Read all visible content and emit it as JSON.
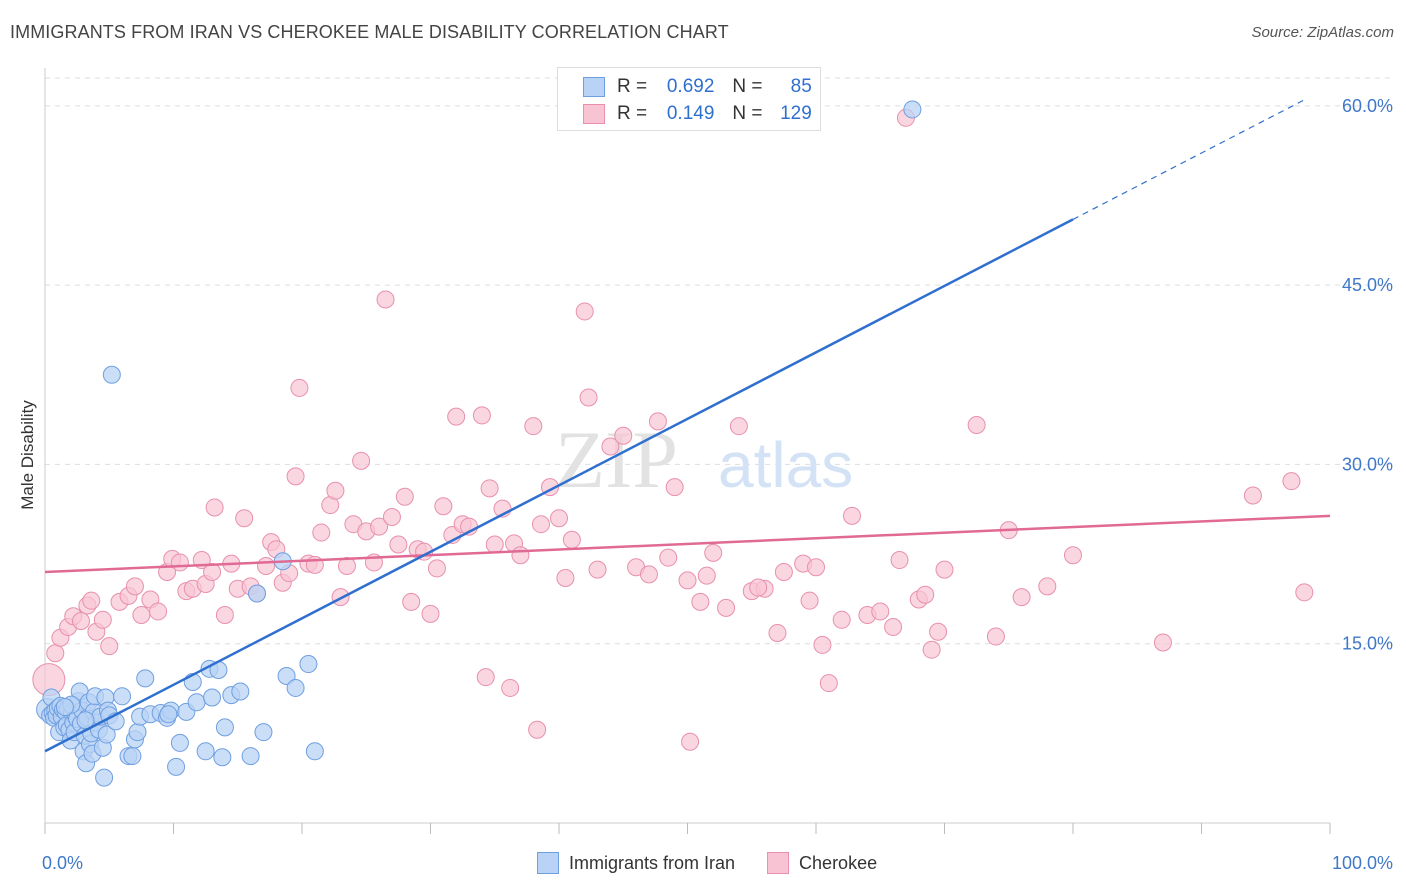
{
  "header": {
    "title": "IMMIGRANTS FROM IRAN VS CHEROKEE MALE DISABILITY CORRELATION CHART",
    "source": "Source: ZipAtlas.com"
  },
  "legend_top": {
    "rows": [
      {
        "r_label": "R =",
        "r_value": "0.692",
        "n_label": "N =",
        "n_value": "85"
      },
      {
        "r_label": "R =",
        "r_value": "0.149",
        "n_label": "N =",
        "n_value": "129"
      }
    ]
  },
  "legend_bottom": {
    "items": [
      "Immigrants from Iran",
      "Cherokee"
    ]
  },
  "watermark": {
    "zip": "ZIP",
    "atlas": "atlas"
  },
  "colors": {
    "iran_fill": "#b8d3f5",
    "iran_stroke": "#6f9fe0",
    "iran_line": "#2f6fcf",
    "cherokee_fill": "#f8c4d4",
    "cherokee_stroke": "#e890ad",
    "cherokee_line": "#e06a93",
    "axis_label": "#3f78c9",
    "grid": "#dddddd"
  },
  "chart_data": {
    "type": "scatter",
    "title": "IMMIGRANTS FROM IRAN VS CHEROKEE MALE DISABILITY CORRELATION CHART",
    "xlabel": "",
    "ylabel": "Male Disability",
    "xlim": [
      0,
      100
    ],
    "ylim": [
      0,
      63
    ],
    "x_tick_labels": [
      "0.0%",
      "100.0%"
    ],
    "y_ticks": [
      15,
      30,
      45,
      60
    ],
    "y_tick_labels": [
      "15.0%",
      "30.0%",
      "45.0%",
      "60.0%"
    ],
    "series": [
      {
        "name": "Immigrants from Iran",
        "r": 0.692,
        "n": 85,
        "trend": {
          "x0": 0,
          "y0": 6.0,
          "x1": 80,
          "y1": 50.5,
          "dashed_to_x": 98,
          "dashed_to_y": 60.5
        },
        "points": [
          [
            0.2,
            9.5
          ],
          [
            0.4,
            9.0
          ],
          [
            0.5,
            10.5
          ],
          [
            0.6,
            9.2
          ],
          [
            0.7,
            8.8
          ],
          [
            0.8,
            9.4
          ],
          [
            0.9,
            9.0
          ],
          [
            1.0,
            9.6
          ],
          [
            1.1,
            7.6
          ],
          [
            1.2,
            9.8
          ],
          [
            1.3,
            8.9
          ],
          [
            1.4,
            9.5
          ],
          [
            1.5,
            8.0
          ],
          [
            1.6,
            9.3
          ],
          [
            1.7,
            8.2
          ],
          [
            1.8,
            9.6
          ],
          [
            1.9,
            7.8
          ],
          [
            2.0,
            6.9
          ],
          [
            2.1,
            9.2
          ],
          [
            2.2,
            8.4
          ],
          [
            2.3,
            7.6
          ],
          [
            2.4,
            9.0
          ],
          [
            2.5,
            8.7
          ],
          [
            2.6,
            10.2
          ],
          [
            2.7,
            11.0
          ],
          [
            2.8,
            8.3
          ],
          [
            2.9,
            9.4
          ],
          [
            3.0,
            6.0
          ],
          [
            3.1,
            7.3
          ],
          [
            3.2,
            5.0
          ],
          [
            3.3,
            8.8
          ],
          [
            3.4,
            10.1
          ],
          [
            3.5,
            6.6
          ],
          [
            3.6,
            7.5
          ],
          [
            3.7,
            5.8
          ],
          [
            3.8,
            9.3
          ],
          [
            3.9,
            10.6
          ],
          [
            4.0,
            8.4
          ],
          [
            4.2,
            7.8
          ],
          [
            4.3,
            8.9
          ],
          [
            4.5,
            6.3
          ],
          [
            4.6,
            3.8
          ],
          [
            4.7,
            10.5
          ],
          [
            4.8,
            7.4
          ],
          [
            4.9,
            9.4
          ],
          [
            5.0,
            9.0
          ],
          [
            5.2,
            37.5
          ],
          [
            5.5,
            8.5
          ],
          [
            6.0,
            10.6
          ],
          [
            6.5,
            5.6
          ],
          [
            6.8,
            5.6
          ],
          [
            7.0,
            7.0
          ],
          [
            7.2,
            7.6
          ],
          [
            7.4,
            8.9
          ],
          [
            7.8,
            12.1
          ],
          [
            8.2,
            9.1
          ],
          [
            9.0,
            9.2
          ],
          [
            9.5,
            8.8
          ],
          [
            9.8,
            9.4
          ],
          [
            10.2,
            4.7
          ],
          [
            10.5,
            6.7
          ],
          [
            11.0,
            9.3
          ],
          [
            11.5,
            11.8
          ],
          [
            11.8,
            10.1
          ],
          [
            12.5,
            6.0
          ],
          [
            12.8,
            12.9
          ],
          [
            13.0,
            10.5
          ],
          [
            13.5,
            12.8
          ],
          [
            13.8,
            5.5
          ],
          [
            14.0,
            8.0
          ],
          [
            14.5,
            10.7
          ],
          [
            15.2,
            11.0
          ],
          [
            16.0,
            5.6
          ],
          [
            16.5,
            19.2
          ],
          [
            17.0,
            7.6
          ],
          [
            18.5,
            21.9
          ],
          [
            18.8,
            12.3
          ],
          [
            19.5,
            11.3
          ],
          [
            20.5,
            13.3
          ],
          [
            21.0,
            6.0
          ],
          [
            67.5,
            59.7
          ],
          [
            9.6,
            9.1
          ],
          [
            2.05,
            9.9
          ],
          [
            3.15,
            8.6
          ],
          [
            1.55,
            9.7
          ]
        ]
      },
      {
        "name": "Cherokee",
        "r": 0.149,
        "n": 129,
        "trend": {
          "x0": 0,
          "y0": 21.0,
          "x1": 100,
          "y1": 25.7
        },
        "points": [
          [
            0.3,
            12.0
          ],
          [
            0.8,
            14.2
          ],
          [
            1.2,
            15.5
          ],
          [
            1.8,
            16.4
          ],
          [
            2.2,
            17.3
          ],
          [
            2.8,
            16.9
          ],
          [
            3.3,
            18.2
          ],
          [
            3.6,
            18.6
          ],
          [
            4.0,
            16.0
          ],
          [
            4.5,
            17.0
          ],
          [
            5.0,
            14.8
          ],
          [
            5.8,
            18.5
          ],
          [
            6.5,
            19.0
          ],
          [
            7.0,
            19.8
          ],
          [
            7.5,
            17.4
          ],
          [
            8.2,
            18.7
          ],
          [
            8.8,
            17.7
          ],
          [
            9.5,
            21.0
          ],
          [
            9.9,
            22.1
          ],
          [
            10.5,
            21.8
          ],
          [
            11.0,
            19.4
          ],
          [
            11.5,
            19.6
          ],
          [
            12.2,
            22.0
          ],
          [
            12.5,
            20.0
          ],
          [
            13.0,
            21.0
          ],
          [
            13.2,
            26.4
          ],
          [
            14.0,
            17.4
          ],
          [
            14.5,
            21.7
          ],
          [
            15.0,
            19.6
          ],
          [
            15.5,
            25.5
          ],
          [
            16.0,
            19.8
          ],
          [
            16.5,
            19.2
          ],
          [
            17.2,
            21.5
          ],
          [
            17.6,
            23.5
          ],
          [
            18.0,
            22.9
          ],
          [
            18.5,
            20.1
          ],
          [
            19.0,
            20.9
          ],
          [
            19.5,
            29.0
          ],
          [
            19.8,
            36.4
          ],
          [
            20.5,
            21.7
          ],
          [
            21.0,
            21.6
          ],
          [
            21.5,
            24.3
          ],
          [
            22.2,
            26.6
          ],
          [
            22.6,
            27.8
          ],
          [
            23.0,
            18.9
          ],
          [
            23.5,
            21.5
          ],
          [
            24.0,
            25.0
          ],
          [
            24.6,
            30.3
          ],
          [
            25.0,
            24.4
          ],
          [
            25.6,
            21.8
          ],
          [
            26.0,
            24.8
          ],
          [
            26.5,
            43.8
          ],
          [
            27.0,
            25.6
          ],
          [
            27.5,
            23.3
          ],
          [
            28.0,
            27.3
          ],
          [
            28.5,
            18.5
          ],
          [
            29.0,
            22.9
          ],
          [
            29.5,
            22.7
          ],
          [
            30.0,
            17.5
          ],
          [
            30.5,
            21.3
          ],
          [
            31.0,
            26.5
          ],
          [
            31.7,
            24.1
          ],
          [
            32.0,
            34.0
          ],
          [
            32.5,
            25.0
          ],
          [
            33.0,
            24.8
          ],
          [
            34.0,
            34.1
          ],
          [
            34.6,
            28.0
          ],
          [
            35.0,
            23.3
          ],
          [
            35.6,
            26.3
          ],
          [
            36.5,
            23.4
          ],
          [
            37.0,
            22.4
          ],
          [
            38.0,
            33.2
          ],
          [
            38.6,
            25.0
          ],
          [
            39.3,
            28.1
          ],
          [
            40.0,
            25.5
          ],
          [
            40.5,
            20.5
          ],
          [
            41.0,
            23.7
          ],
          [
            42.0,
            42.8
          ],
          [
            42.3,
            35.6
          ],
          [
            44.0,
            31.5
          ],
          [
            45.0,
            32.4
          ],
          [
            46.0,
            21.4
          ],
          [
            47.0,
            20.8
          ],
          [
            47.7,
            33.6
          ],
          [
            48.5,
            22.2
          ],
          [
            49.0,
            28.1
          ],
          [
            50.0,
            20.3
          ],
          [
            51.0,
            18.5
          ],
          [
            51.5,
            20.7
          ],
          [
            52.0,
            22.6
          ],
          [
            53.0,
            18.0
          ],
          [
            54.0,
            33.2
          ],
          [
            55.0,
            19.4
          ],
          [
            56.0,
            19.6
          ],
          [
            57.0,
            15.9
          ],
          [
            57.5,
            21.0
          ],
          [
            59.0,
            21.7
          ],
          [
            59.5,
            18.6
          ],
          [
            60.0,
            21.4
          ],
          [
            60.5,
            14.9
          ],
          [
            61.0,
            11.7
          ],
          [
            62.0,
            17.0
          ],
          [
            62.8,
            25.7
          ],
          [
            64.0,
            17.4
          ],
          [
            65.0,
            17.7
          ],
          [
            66.0,
            16.4
          ],
          [
            66.5,
            22.0
          ],
          [
            67.0,
            59.0
          ],
          [
            68.0,
            18.7
          ],
          [
            68.5,
            19.1
          ],
          [
            69.0,
            14.5
          ],
          [
            69.5,
            16.0
          ],
          [
            70.0,
            21.2
          ],
          [
            72.5,
            33.3
          ],
          [
            74.0,
            15.6
          ],
          [
            75.0,
            24.5
          ],
          [
            76.0,
            18.9
          ],
          [
            78.0,
            19.8
          ],
          [
            80.0,
            22.4
          ],
          [
            87.0,
            15.1
          ],
          [
            94.0,
            27.4
          ],
          [
            97.0,
            28.6
          ],
          [
            98.0,
            19.3
          ],
          [
            34.3,
            12.2
          ],
          [
            36.2,
            11.3
          ],
          [
            38.3,
            7.8
          ],
          [
            50.2,
            6.8
          ],
          [
            43.0,
            21.2
          ],
          [
            55.5,
            19.7
          ]
        ]
      }
    ]
  }
}
